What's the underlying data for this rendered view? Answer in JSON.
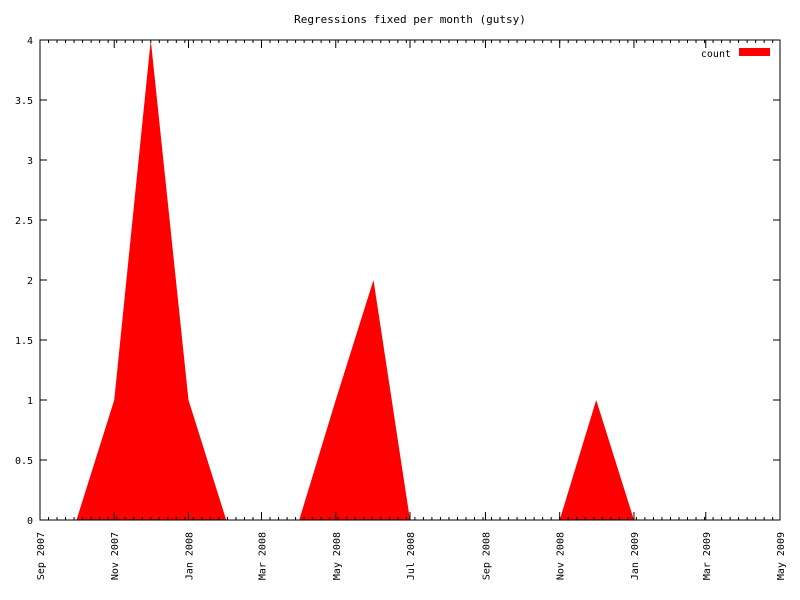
{
  "colors": {
    "background": "#ffffff",
    "axis": "#000000",
    "series": "#ff0000"
  },
  "chart_data": {
    "type": "area",
    "title": "Regressions fixed per month (gutsy)",
    "xlabel": "",
    "ylabel": "",
    "xlim": [
      "2007-09-01",
      "2009-05-01"
    ],
    "ylim": [
      0,
      4
    ],
    "grid": false,
    "legend_position": "top-right",
    "x_tick_labels": [
      "Sep 2007",
      "Nov 2007",
      "Jan 2008",
      "Mar 2008",
      "May 2008",
      "Jul 2008",
      "Sep 2008",
      "Nov 2008",
      "Jan 2009",
      "Mar 2009",
      "May 2009"
    ],
    "y_tick_labels": [
      "0",
      "0.5",
      "1",
      "1.5",
      "2",
      "2.5",
      "3",
      "3.5",
      "4"
    ],
    "series": [
      {
        "name": "count",
        "color": "#ff0000",
        "x": [
          "2007-10-01",
          "2007-11-01",
          "2007-12-01",
          "2008-01-01",
          "2008-02-01",
          "2008-03-01",
          "2008-04-01",
          "2008-05-01",
          "2008-06-01",
          "2008-07-01",
          "2008-08-01",
          "2008-09-01",
          "2008-10-01",
          "2008-11-01",
          "2008-12-01",
          "2009-01-01"
        ],
        "values": [
          0,
          1,
          4,
          1,
          0,
          0,
          0,
          1,
          2,
          0,
          0,
          0,
          0,
          0,
          1,
          0
        ]
      }
    ]
  }
}
